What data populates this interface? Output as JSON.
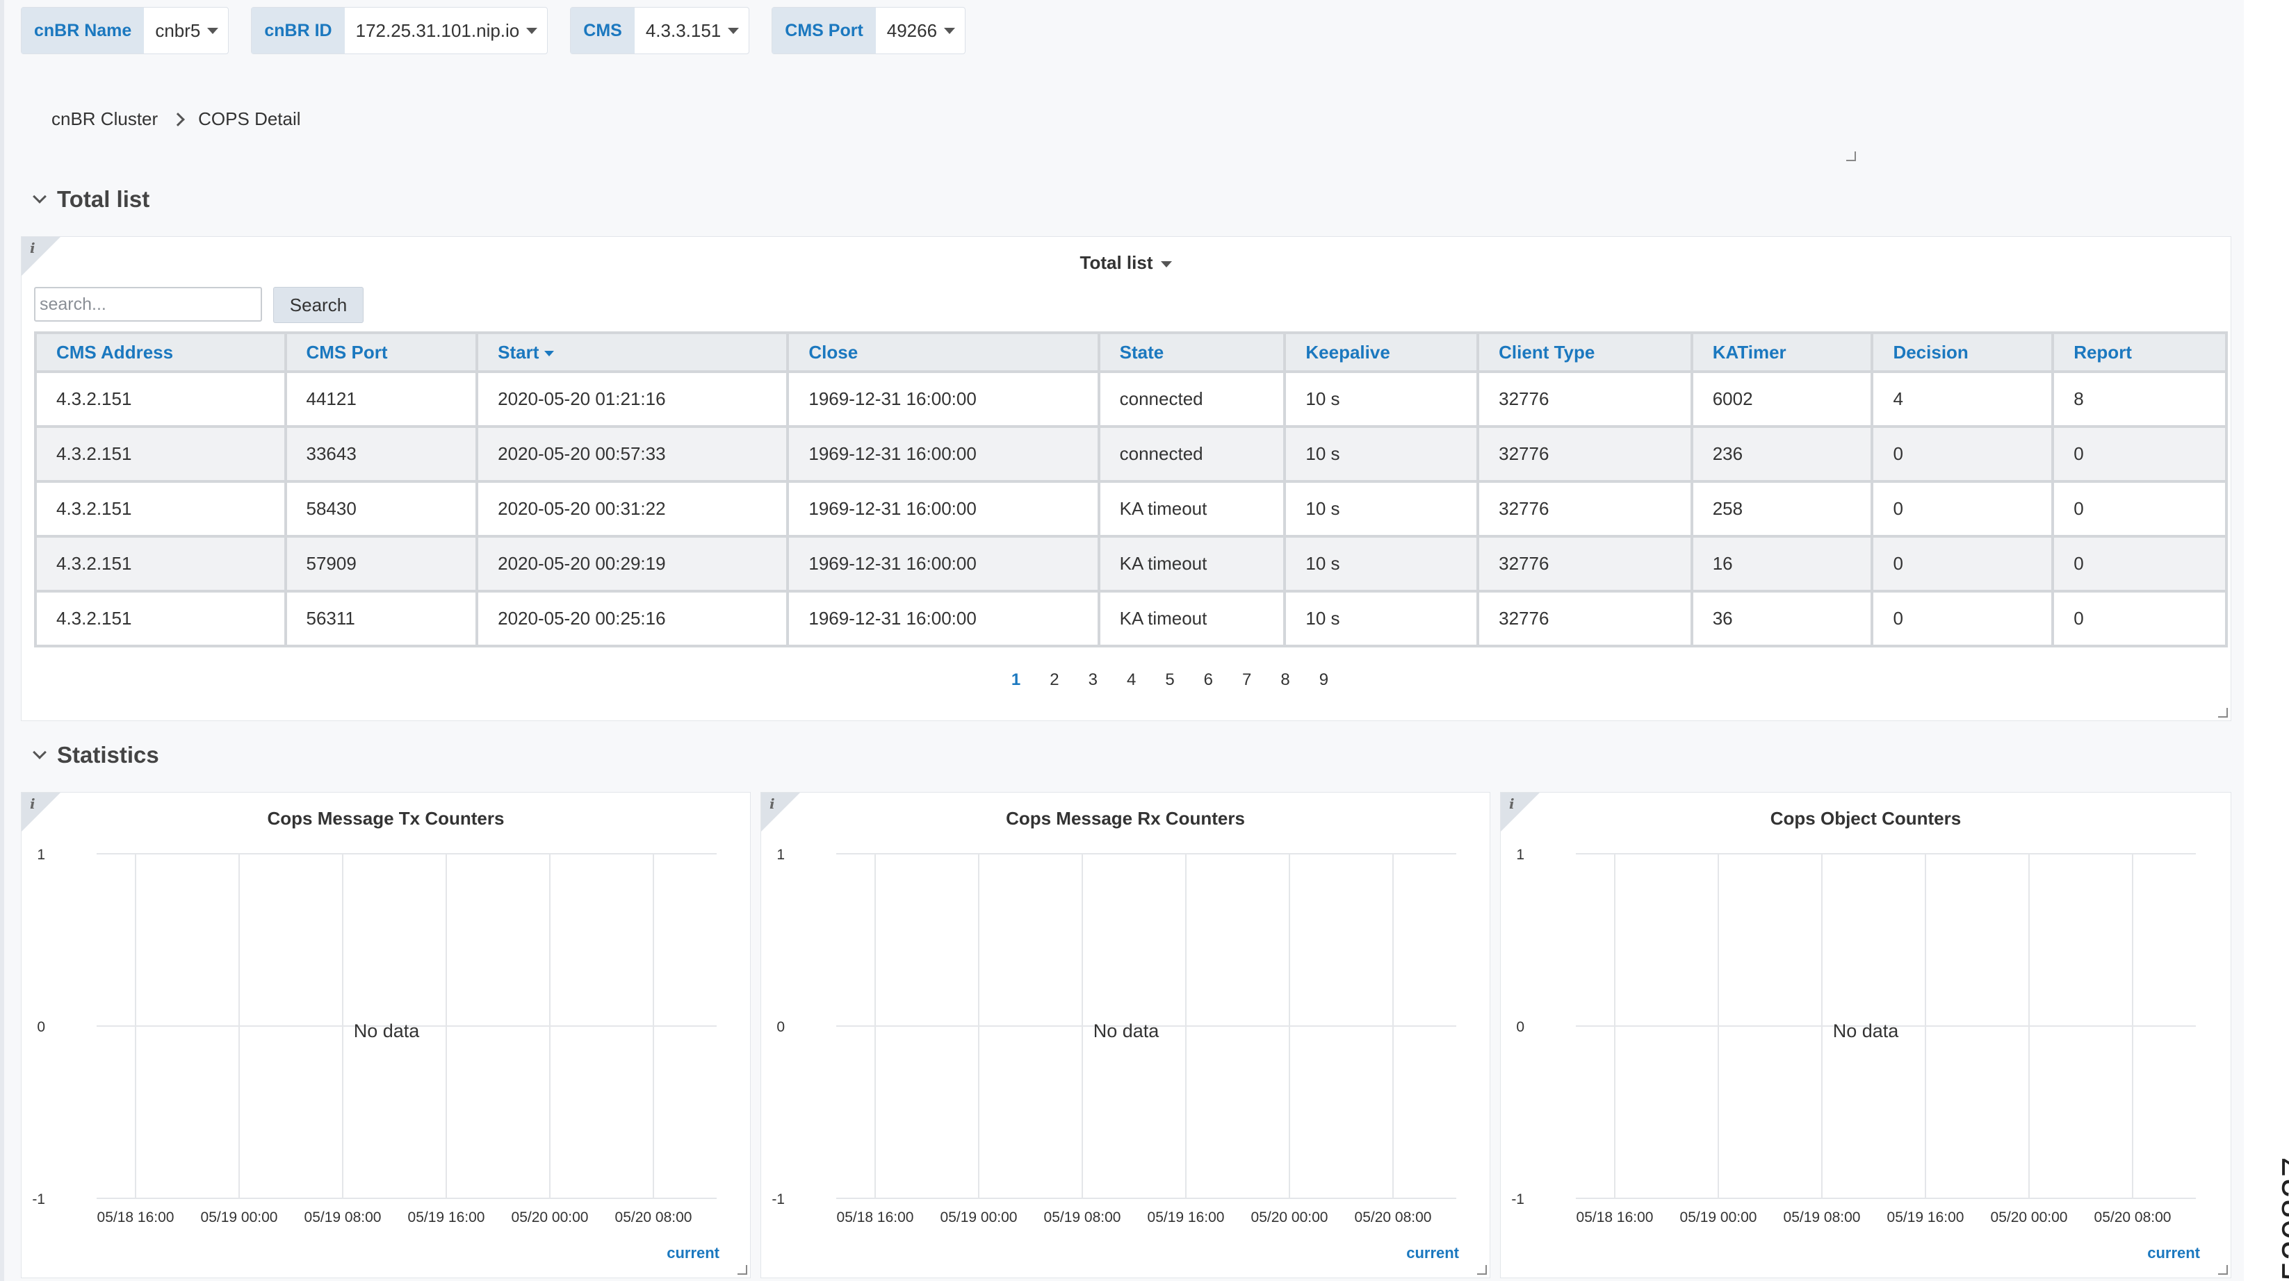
{
  "variables": [
    {
      "label": "cnBR Name",
      "value": "cnbr5"
    },
    {
      "label": "cnBR ID",
      "value": "172.25.31.101.nip.io"
    },
    {
      "label": "CMS",
      "value": "4.3.3.151"
    },
    {
      "label": "CMS Port",
      "value": "49266"
    }
  ],
  "breadcrumb": {
    "parent": "cnBR Cluster",
    "current": "COPS Detail"
  },
  "sections": {
    "total": "Total list",
    "stats": "Statistics"
  },
  "total_panel": {
    "title": "Total list",
    "search_placeholder": "search...",
    "search_label": "Search",
    "columns": [
      "CMS Address",
      "CMS Port",
      "Start",
      "Close",
      "State",
      "Keepalive",
      "Client Type",
      "KATimer",
      "Decision",
      "Report"
    ],
    "rows": [
      [
        "4.3.2.151",
        "44121",
        "2020-05-20 01:21:16",
        "1969-12-31 16:00:00",
        "connected",
        "10 s",
        "32776",
        "6002",
        "4",
        "8"
      ],
      [
        "4.3.2.151",
        "33643",
        "2020-05-20 00:57:33",
        "1969-12-31 16:00:00",
        "connected",
        "10 s",
        "32776",
        "236",
        "0",
        "0"
      ],
      [
        "4.3.2.151",
        "58430",
        "2020-05-20 00:31:22",
        "1969-12-31 16:00:00",
        "KA timeout",
        "10 s",
        "32776",
        "258",
        "0",
        "0"
      ],
      [
        "4.3.2.151",
        "57909",
        "2020-05-20 00:29:19",
        "1969-12-31 16:00:00",
        "KA timeout",
        "10 s",
        "32776",
        "16",
        "0",
        "0"
      ],
      [
        "4.3.2.151",
        "56311",
        "2020-05-20 00:25:16",
        "1969-12-31 16:00:00",
        "KA timeout",
        "10 s",
        "32776",
        "36",
        "0",
        "0"
      ]
    ],
    "pages": [
      "1",
      "2",
      "3",
      "4",
      "5",
      "6",
      "7",
      "8",
      "9"
    ],
    "active_page": "1"
  },
  "info_icon": "i",
  "chart_data": [
    {
      "type": "line",
      "title": "Cops Message Tx Counters",
      "x": [
        "05/18 16:00",
        "05/19 00:00",
        "05/19 08:00",
        "05/19 16:00",
        "05/20 00:00",
        "05/20 08:00"
      ],
      "yticks": [
        "1",
        "0",
        "-1"
      ],
      "ylim": [
        -1,
        1
      ],
      "series": [],
      "no_data": "No data",
      "legend": "current",
      "grid": true
    },
    {
      "type": "line",
      "title": "Cops Message Rx Counters",
      "x": [
        "05/18 16:00",
        "05/19 00:00",
        "05/19 08:00",
        "05/19 16:00",
        "05/20 00:00",
        "05/20 08:00"
      ],
      "yticks": [
        "1",
        "0",
        "-1"
      ],
      "ylim": [
        -1,
        1
      ],
      "series": [],
      "no_data": "No data",
      "legend": "current",
      "grid": true
    },
    {
      "type": "line",
      "title": "Cops Object Counters",
      "x": [
        "05/18 16:00",
        "05/19 00:00",
        "05/19 08:00",
        "05/19 16:00",
        "05/20 00:00",
        "05/20 08:00"
      ],
      "yticks": [
        "1",
        "0",
        "-1"
      ],
      "ylim": [
        -1,
        1
      ],
      "series": [],
      "no_data": "No data",
      "legend": "current",
      "grid": true
    }
  ],
  "side_id": "520837",
  "colors": {
    "accent": "#1b78bf",
    "label_bg": "#dde6ef",
    "header_bg": "#e9ecef"
  }
}
